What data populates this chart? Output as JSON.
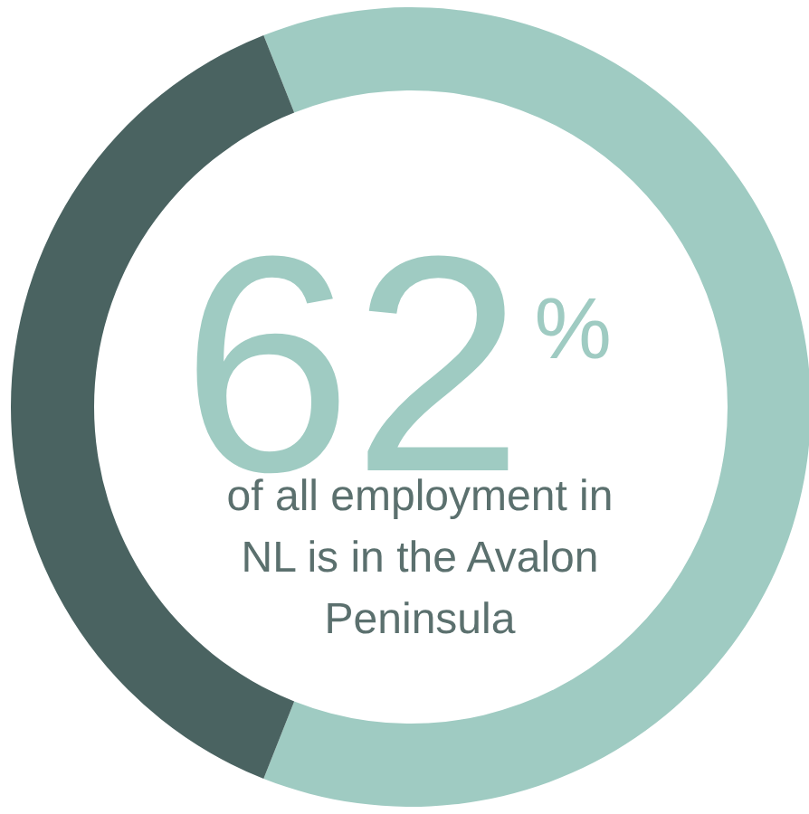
{
  "chart_data": {
    "type": "donut",
    "categories": [
      null,
      null
    ],
    "values": [
      62,
      38
    ],
    "colors": [
      "#9fcbc2",
      "#4a6361"
    ],
    "value_labels": [
      "62$^{%}$",
      null
    ],
    "annotations": [
      "of all employment in NL is in the Avalon Peninsula"
    ]
  }
}
